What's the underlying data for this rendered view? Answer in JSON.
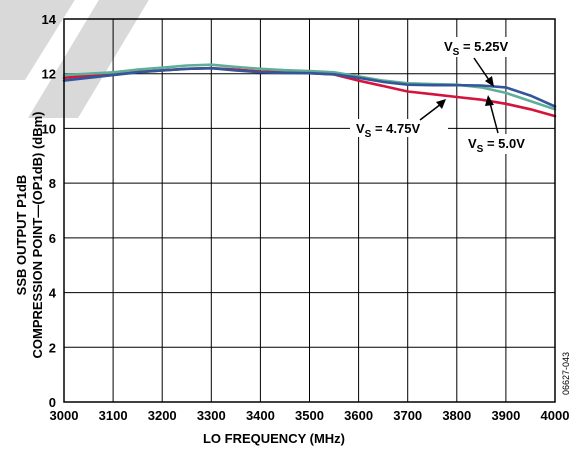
{
  "chart_data": {
    "type": "line",
    "xlabel": "LO FREQUENCY (MHz)",
    "ylabel_line1": "SSB OUTPUT P1dB",
    "ylabel_line2": "COMPRESSION POINT—(OP1dB) (dBm)",
    "xlim": [
      3000,
      4000
    ],
    "ylim": [
      0,
      14
    ],
    "xticks": [
      3000,
      3100,
      3200,
      3300,
      3400,
      3500,
      3600,
      3700,
      3800,
      3900,
      4000
    ],
    "yticks": [
      0,
      2,
      4,
      6,
      8,
      10,
      12,
      14
    ],
    "grid": true,
    "x": [
      3000,
      3050,
      3100,
      3150,
      3200,
      3250,
      3300,
      3350,
      3400,
      3450,
      3500,
      3550,
      3600,
      3650,
      3700,
      3750,
      3800,
      3850,
      3900,
      3950,
      4000
    ],
    "series": [
      {
        "name": "4.75V",
        "color": "#d4143c",
        "values": [
          11.85,
          11.93,
          12.0,
          12.07,
          12.12,
          12.18,
          12.2,
          12.15,
          12.08,
          12.05,
          12.02,
          11.97,
          11.75,
          11.55,
          11.35,
          11.25,
          11.15,
          11.05,
          10.9,
          10.7,
          10.45
        ]
      },
      {
        "name": "5.0V",
        "color": "#5fae97",
        "values": [
          11.95,
          12.0,
          12.05,
          12.15,
          12.22,
          12.3,
          12.33,
          12.25,
          12.18,
          12.13,
          12.1,
          12.05,
          11.9,
          11.75,
          11.65,
          11.62,
          11.6,
          11.5,
          11.3,
          11.0,
          10.7
        ]
      },
      {
        "name": "5.25V",
        "color": "#33569a",
        "values": [
          11.75,
          11.85,
          11.95,
          12.05,
          12.12,
          12.18,
          12.2,
          12.12,
          12.05,
          12.03,
          12.02,
          11.98,
          11.85,
          11.7,
          11.6,
          11.58,
          11.58,
          11.57,
          11.5,
          11.2,
          10.8
        ]
      }
    ],
    "annotations": {
      "vs_475": {
        "v": "V",
        "s": "S",
        "val": " = 4.75V"
      },
      "vs_50": {
        "v": "V",
        "s": "S",
        "val": " = 5.0V"
      },
      "vs_525": {
        "v": "V",
        "s": "S",
        "val": " = 5.25V"
      }
    },
    "figure_id": "06627-043"
  }
}
